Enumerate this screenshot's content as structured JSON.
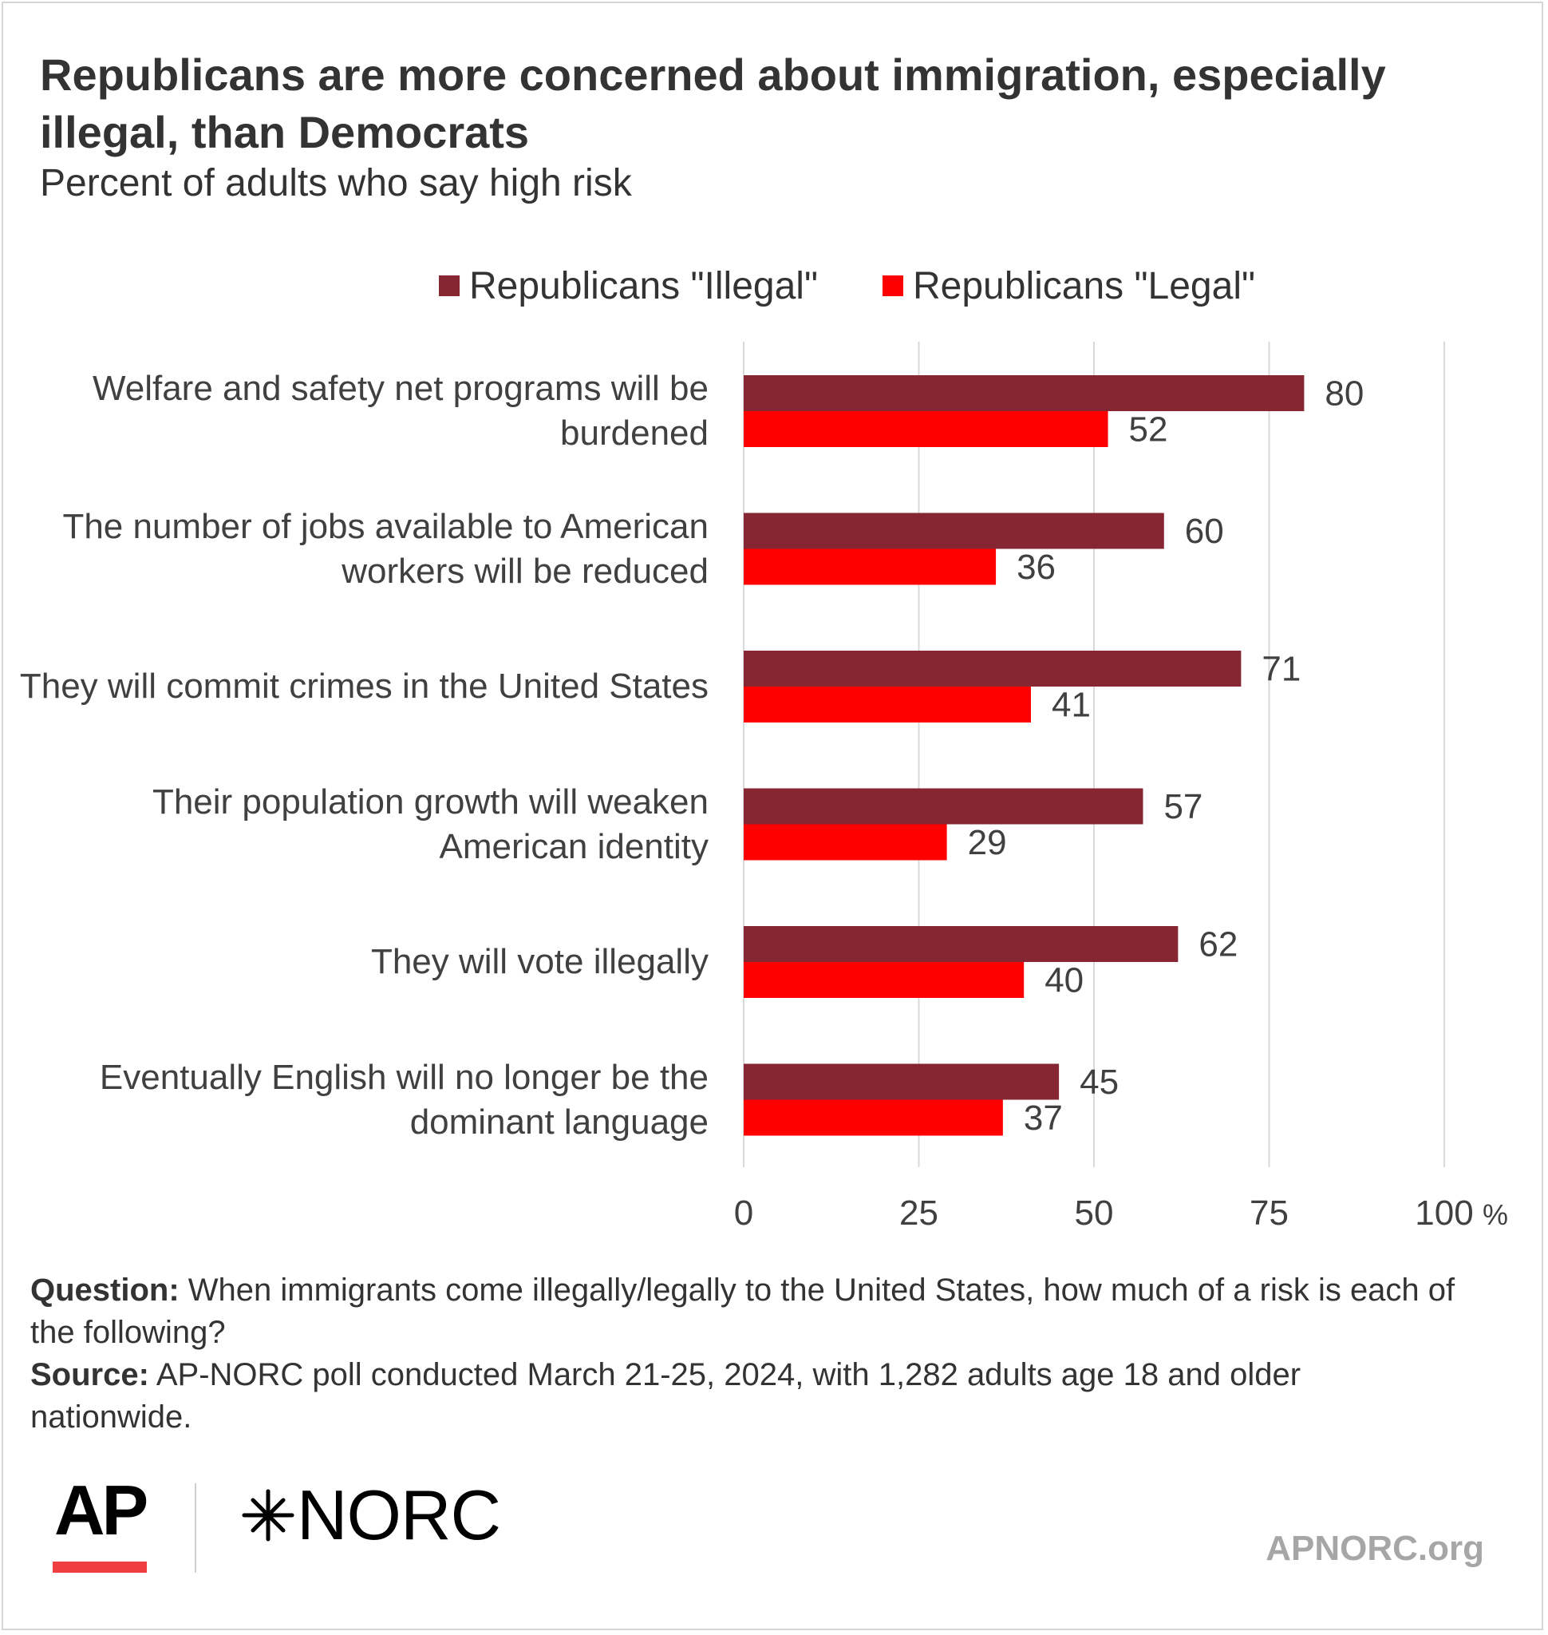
{
  "header": {
    "title": "Republicans are more concerned about immigration, especially illegal, than Democrats",
    "subtitle": "Percent of adults who say high risk"
  },
  "chart_data": {
    "type": "bar",
    "orientation": "horizontal",
    "categories": [
      "Welfare and safety net programs will be burdened",
      "The number of jobs available to American workers will be reduced",
      "They will commit crimes in the United States",
      "Their population growth will weaken American identity",
      "They will vote illegally",
      "Eventually English will no longer be the dominant language"
    ],
    "series": [
      {
        "name": "Republicans \"Illegal\"",
        "color": "#862633",
        "values": [
          80,
          60,
          71,
          57,
          62,
          45
        ]
      },
      {
        "name": "Republicans \"Legal\"",
        "color": "#ff0000",
        "values": [
          52,
          36,
          41,
          29,
          40,
          37
        ]
      }
    ],
    "xlim": [
      0,
      100
    ],
    "xticks": [
      0,
      25,
      50,
      75,
      100
    ],
    "x_unit": "%",
    "grid": true,
    "legend_position": "top",
    "data_labels": true
  },
  "footer": {
    "question_label": "Question:",
    "question_text": " When immigrants come illegally/legally to the United States, how much of a risk is each of the following?",
    "source_label": "Source:",
    "source_text": " AP-NORC poll conducted March 21-25, 2024, with 1,282 adults age 18 and older nationwide."
  },
  "branding": {
    "ap_logo": "AP",
    "ap_accent_color": "#ef3e42",
    "norc_logo": "NORC",
    "norc_icon": "star-burst-icon",
    "site": "APNORC.org"
  }
}
